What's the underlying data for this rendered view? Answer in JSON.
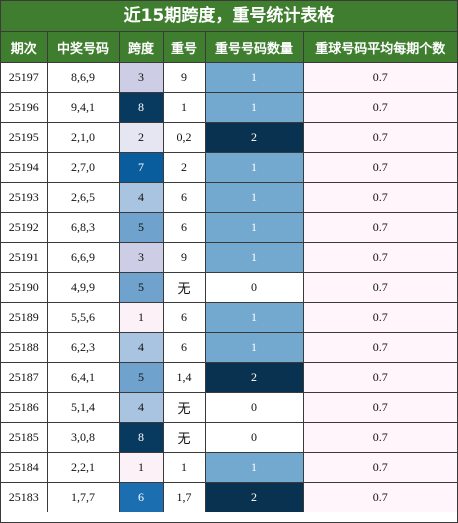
{
  "title": "近15期跨度，重号统计表格",
  "headers": [
    "期次",
    "中奖号码",
    "跨度",
    "重号",
    "重号号码数量",
    "重球号码平均每期个数"
  ],
  "rows": [
    {
      "issue": "25197",
      "numbers": "8,6,9",
      "span": "3",
      "repeat": "9",
      "count": "1",
      "avg": "0.7"
    },
    {
      "issue": "25196",
      "numbers": "9,4,1",
      "span": "8",
      "repeat": "1",
      "count": "1",
      "avg": "0.7"
    },
    {
      "issue": "25195",
      "numbers": "2,1,0",
      "span": "2",
      "repeat": "0,2",
      "count": "2",
      "avg": "0.7"
    },
    {
      "issue": "25194",
      "numbers": "2,7,0",
      "span": "7",
      "repeat": "2",
      "count": "1",
      "avg": "0.7"
    },
    {
      "issue": "25193",
      "numbers": "2,6,5",
      "span": "4",
      "repeat": "6",
      "count": "1",
      "avg": "0.7"
    },
    {
      "issue": "25192",
      "numbers": "6,8,3",
      "span": "5",
      "repeat": "6",
      "count": "1",
      "avg": "0.7"
    },
    {
      "issue": "25191",
      "numbers": "6,6,9",
      "span": "3",
      "repeat": "9",
      "count": "1",
      "avg": "0.7"
    },
    {
      "issue": "25190",
      "numbers": "4,9,9",
      "span": "5",
      "repeat": "无",
      "count": "0",
      "avg": "0.7"
    },
    {
      "issue": "25189",
      "numbers": "5,5,6",
      "span": "1",
      "repeat": "6",
      "count": "1",
      "avg": "0.7"
    },
    {
      "issue": "25188",
      "numbers": "6,2,3",
      "span": "4",
      "repeat": "6",
      "count": "1",
      "avg": "0.7"
    },
    {
      "issue": "25187",
      "numbers": "6,4,1",
      "span": "5",
      "repeat": "1,4",
      "count": "2",
      "avg": "0.7"
    },
    {
      "issue": "25186",
      "numbers": "5,1,4",
      "span": "4",
      "repeat": "无",
      "count": "0",
      "avg": "0.7"
    },
    {
      "issue": "25185",
      "numbers": "3,0,8",
      "span": "8",
      "repeat": "无",
      "count": "0",
      "avg": "0.7"
    },
    {
      "issue": "25184",
      "numbers": "2,2,1",
      "span": "1",
      "repeat": "1",
      "count": "1",
      "avg": "0.7"
    },
    {
      "issue": "25183",
      "numbers": "1,7,7",
      "span": "6",
      "repeat": "1,7",
      "count": "2",
      "avg": "0.7"
    }
  ],
  "colors": {
    "header_bg": "#3f7d2f",
    "header_text": "#ffffff",
    "cell_bg": "#fff5fa",
    "span_scale": {
      "1": "#fdf1f8",
      "2": "#e6e6f2",
      "3": "#cdcde6",
      "4": "#a9c4e0",
      "5": "#6fa2cc",
      "6": "#1b6fb0",
      "7": "#0a5d9c",
      "8": "#073a5e"
    },
    "count_scale": {
      "0": "#ffffff",
      "1": "#74a9cf",
      "2": "#08324f"
    }
  }
}
